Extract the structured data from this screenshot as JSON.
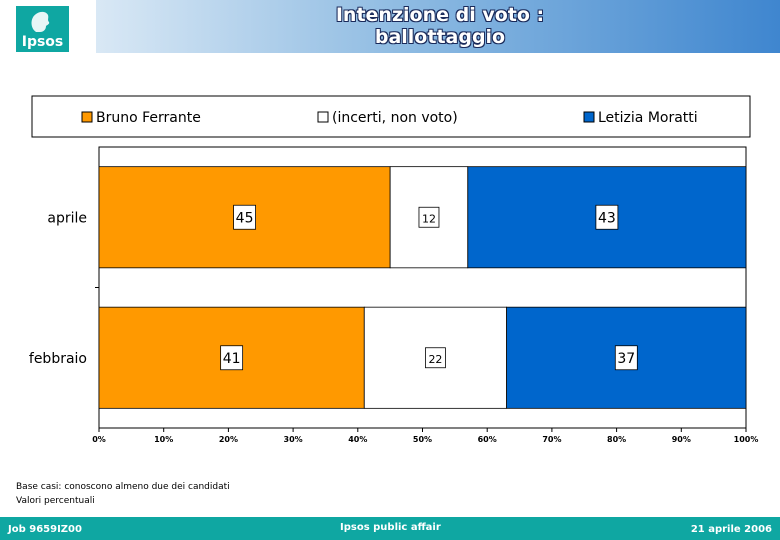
{
  "header": {
    "logo_text": "Ipsos",
    "title_line1": "Intenzione di voto :",
    "title_line2": "ballottaggio",
    "brand_color": "#0fa7a2"
  },
  "chart_data": {
    "type": "bar",
    "orientation": "horizontal-stacked-100",
    "categories": [
      "aprile",
      "febbraio"
    ],
    "series": [
      {
        "name": "Bruno Ferrante",
        "values": [
          45,
          41
        ],
        "color": "#ff9900"
      },
      {
        "name": "(incerti, non voto)",
        "values": [
          12,
          22
        ],
        "color": "#ffffff"
      },
      {
        "name": "Letizia Moratti",
        "values": [
          43,
          37
        ],
        "color": "#0066cc"
      }
    ],
    "x_ticks": [
      "0%",
      "10%",
      "20%",
      "30%",
      "40%",
      "50%",
      "60%",
      "70%",
      "80%",
      "90%",
      "100%"
    ],
    "xlim": [
      0,
      100
    ],
    "legend_placement": "top",
    "grid": false
  },
  "notes": {
    "base": "Base casi: conoscono almeno due dei candidati",
    "values": "Valori percentuali"
  },
  "footer": {
    "job": "Job 9659IZ00",
    "center": "Ipsos public affair",
    "date": "21 aprile 2006"
  }
}
